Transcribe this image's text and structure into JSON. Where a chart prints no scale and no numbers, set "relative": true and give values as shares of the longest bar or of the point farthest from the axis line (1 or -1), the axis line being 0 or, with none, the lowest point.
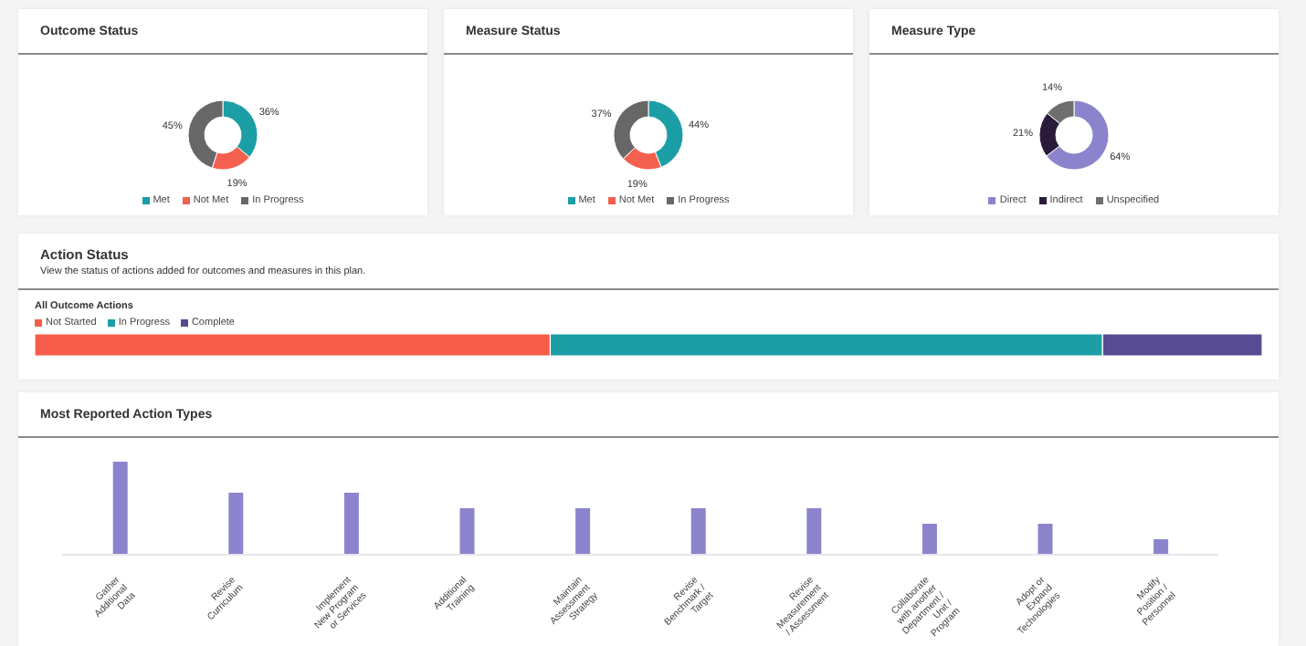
{
  "chart_data": [
    {
      "type": "donut",
      "title": "Outcome Status",
      "categories": [
        "Met",
        "Not Met",
        "In Progress"
      ],
      "values": [
        36,
        19,
        45
      ],
      "value_labels": [
        "36%",
        "19%",
        "45%"
      ],
      "colors": [
        "#1c9ea6",
        "#f4604f",
        "#676767"
      ],
      "legend": "bottom"
    },
    {
      "type": "donut",
      "title": "Measure Status",
      "categories": [
        "Met",
        "Not Met",
        "In Progress"
      ],
      "values": [
        44,
        19,
        37
      ],
      "value_labels": [
        "44%",
        "19%",
        "37%"
      ],
      "colors": [
        "#1c9ea6",
        "#f4604f",
        "#676767"
      ],
      "legend": "bottom"
    },
    {
      "type": "donut",
      "title": "Measure Type",
      "categories": [
        "Direct",
        "Indirect",
        "Unspecified"
      ],
      "values": [
        64,
        21,
        14
      ],
      "value_labels": [
        "64%",
        "21%",
        "14%"
      ],
      "colors": [
        "#8b84cc",
        "#2a1b3c",
        "#6e6e6e"
      ],
      "legend": "bottom"
    },
    {
      "type": "bar",
      "title": "Action Status",
      "subtitle": "View the status of actions added for outcomes and measures in this plan.",
      "orientation": "horizontal",
      "stacked": true,
      "relative": true,
      "legend": "top left",
      "categories": [
        "All Outcome Actions"
      ],
      "series": [
        {
          "name": "Not Started",
          "color": "#f55d4a",
          "values": [
            0.42
          ]
        },
        {
          "name": "In Progress",
          "color": "#1c9ea6",
          "values": [
            0.45
          ]
        },
        {
          "name": "Complete",
          "color": "#574c93",
          "values": [
            0.13
          ]
        }
      ]
    },
    {
      "type": "bar",
      "title": "Most Reported Action Types",
      "relative": true,
      "color": "#8b84cc",
      "categories": [
        "Gather Additional Data",
        "Revise Curriculum",
        "Implement New Program or Services",
        "Additional Training",
        "Maintain Assessment Strategy",
        "Revise Benchmark / Target",
        "Revise Measurement / Assessment",
        "Collaborate with another Department / Unit / Program",
        "Adopt or Expand Technologies",
        "Modify Position / Personnel"
      ],
      "values": [
        1,
        0.667,
        0.667,
        0.5,
        0.5,
        0.5,
        0.5,
        0.333,
        0.333,
        0.167
      ]
    }
  ]
}
